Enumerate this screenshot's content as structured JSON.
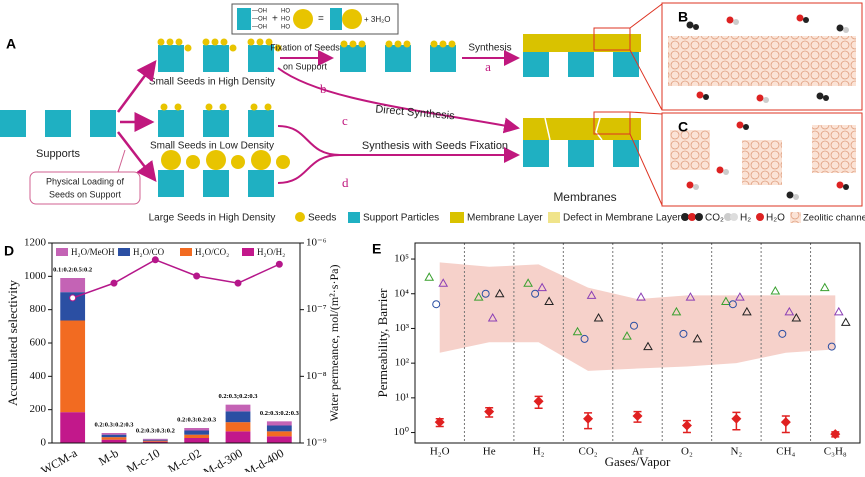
{
  "diagram": {
    "panels": {
      "a": "A",
      "b": "B",
      "c": "C"
    },
    "reaction": {
      "oh": [
        "—OH",
        "—OH",
        "—OH"
      ],
      "plus": "+",
      "ho": [
        "HO",
        "HO",
        "HO"
      ],
      "equals": "=",
      "water": "+ 3H₂O"
    },
    "supports": "Supports",
    "small_high": "Small Seeds in High Density",
    "small_low": "Small Seeds in Low Density",
    "large_high": "Large Seeds in High Density",
    "fixation": [
      "Fixation of Seeds",
      "on Support"
    ],
    "synthesis": "Synthesis",
    "routes": [
      "a",
      "b",
      "c",
      "d"
    ],
    "direct": "Direct Synthesis",
    "seed_synthesis": "Synthesis with Seeds Fixation",
    "loading": [
      "Physical Loading of",
      "Seeds on Support"
    ],
    "membranes": "Membranes",
    "legend": [
      "Seeds",
      "Support Particles",
      "Membrane Layer",
      "Defect in Membrane Layer",
      "CO₂",
      "H₂",
      "H₂O",
      "Zeolitic channels"
    ]
  },
  "chart_data": [
    {
      "type": "stacked_bar",
      "panel": "D",
      "categories": [
        "WCM-a",
        "M-b",
        "M-c-10",
        "M-c-02",
        "M-d-300",
        "M-d-400"
      ],
      "annotations": [
        "0.1:0.2:0.5:0.2",
        "0.2:0.3:0.2:0.3",
        "0.2:0.3:0.3:0.2",
        "0.2:0.3:0.2:0.3",
        "0.2:0.3;0.2:0.3",
        "0.2:0.3:0.2:0.3"
      ],
      "series": [
        {
          "name": "H₂O/H₂",
          "color": "#c2188b",
          "values": [
            185,
            20,
            8,
            30,
            70,
            40
          ]
        },
        {
          "name": "H₂O/CO₂",
          "color": "#f26b21",
          "values": [
            550,
            15,
            6,
            20,
            55,
            30
          ]
        },
        {
          "name": "H₂O/CO",
          "color": "#2b4fa3",
          "values": [
            170,
            15,
            6,
            25,
            65,
            35
          ]
        },
        {
          "name": "H₂O/MeOH",
          "color": "#c463b5",
          "values": [
            85,
            10,
            5,
            15,
            40,
            25
          ]
        }
      ],
      "line": {
        "axis": "y2",
        "color": "#b5178a",
        "values": [
          1.5e-07,
          2.5e-07,
          5.6e-07,
          3.2e-07,
          2.5e-07,
          4.8e-07
        ]
      },
      "ylabel": "Accumulated selectivity",
      "y2label": "Water permeance, mol/(m²·s·Pa)",
      "ylim": [
        0,
        1200
      ],
      "yticks": [
        0,
        200,
        400,
        600,
        800,
        1000,
        1200
      ],
      "y2lim": [
        1e-09,
        1e-06
      ],
      "y2log": true,
      "y2ticks": [
        {
          "value": 1e-09,
          "label": "10⁻⁹"
        },
        {
          "value": 1e-08,
          "label": "10⁻⁸"
        },
        {
          "value": 1e-07,
          "label": "10⁻⁷"
        },
        {
          "value": 1e-06,
          "label": "10⁻⁶"
        }
      ]
    },
    {
      "type": "scatter",
      "panel": "E",
      "categories": [
        "H₂O",
        "He",
        "H₂",
        "CO₂",
        "Ar",
        "O₂",
        "N₂",
        "CH₄",
        "C₃H₈"
      ],
      "xlabel": "Gases/Vapor",
      "ylabel": "Permeability, Barrier",
      "ylim": [
        0.5,
        290000
      ],
      "ylog": true,
      "yticks": [
        {
          "value": 1,
          "label": "10⁰"
        },
        {
          "value": 10,
          "label": "10¹"
        },
        {
          "value": 100,
          "label": "10²"
        },
        {
          "value": 1000,
          "label": "10³"
        },
        {
          "value": 10000,
          "label": "10⁴"
        },
        {
          "value": 100000,
          "label": "10⁵"
        }
      ],
      "band": {
        "color": "#f4c6bd",
        "upper": [
          80000,
          60000,
          70000,
          15000,
          7000,
          9000,
          9000,
          9000,
          9000
        ],
        "lower": [
          200,
          400,
          400,
          60,
          70,
          80,
          100,
          200,
          250
        ]
      },
      "series": [
        {
          "color": "#3aa02f",
          "marker": "triangle",
          "values": [
            30000,
            8000,
            20000,
            800,
            600,
            3000,
            6000,
            12000,
            15000
          ]
        },
        {
          "color": "#2b4fa3",
          "marker": "circle",
          "values": [
            5000,
            10000,
            10000,
            500,
            1200,
            700,
            5000,
            700,
            300
          ]
        },
        {
          "color": "#8b3fb5",
          "marker": "triangle",
          "values": [
            20000,
            2000,
            15000,
            9000,
            8000,
            8000,
            8000,
            3000,
            3000
          ]
        },
        {
          "color": "#222222",
          "marker": "triangle",
          "values": [
            null,
            10000,
            6000,
            2000,
            300,
            500,
            3000,
            2000,
            1500
          ]
        },
        {
          "color": "#e02020",
          "marker": "diamond",
          "values": [
            2,
            4,
            8,
            2.5,
            3,
            1.6,
            2.5,
            2,
            0.9
          ],
          "errors": [
            0.5,
            1.2,
            3,
            1.2,
            1,
            0.6,
            1.3,
            1,
            0.15
          ]
        }
      ]
    }
  ]
}
